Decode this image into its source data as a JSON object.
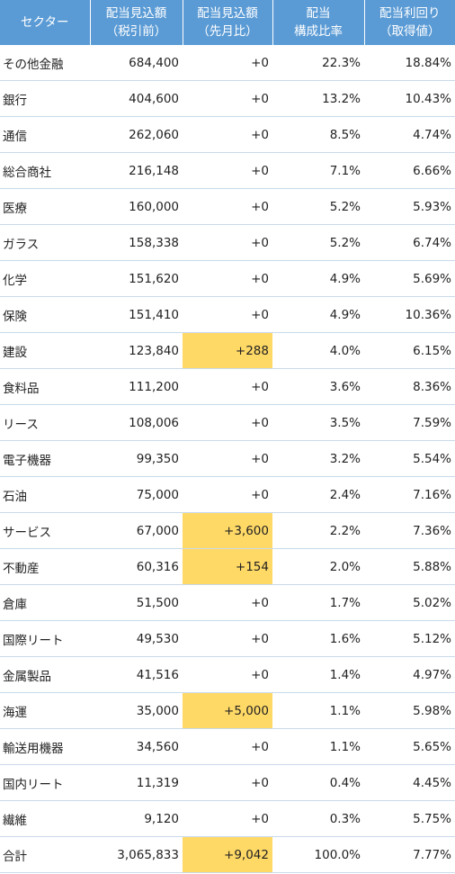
{
  "table": {
    "header": [
      [
        "セクター"
      ],
      [
        "配当見込額",
        "（税引前）"
      ],
      [
        "配当見込額",
        "（先月比）"
      ],
      [
        "配当",
        "構成比率"
      ],
      [
        "配当利回り",
        "（取得値）"
      ]
    ],
    "rows": [
      [
        "その他金融",
        "684,400",
        "+0",
        "22.3%",
        "18.84%"
      ],
      [
        "銀行",
        "404,600",
        "+0",
        "13.2%",
        "10.43%"
      ],
      [
        "通信",
        "262,060",
        "+0",
        "8.5%",
        "4.74%"
      ],
      [
        "総合商社",
        "216,148",
        "+0",
        "7.1%",
        "6.66%"
      ],
      [
        "医療",
        "160,000",
        "+0",
        "5.2%",
        "5.93%"
      ],
      [
        "ガラス",
        "158,338",
        "+0",
        "5.2%",
        "6.74%"
      ],
      [
        "化学",
        "151,620",
        "+0",
        "4.9%",
        "5.69%"
      ],
      [
        "保険",
        "151,410",
        "+0",
        "4.9%",
        "10.36%"
      ],
      [
        "建設",
        "123,840",
        "+288",
        "4.0%",
        "6.15%"
      ],
      [
        "食料品",
        "111,200",
        "+0",
        "3.6%",
        "8.36%"
      ],
      [
        "リース",
        "108,006",
        "+0",
        "3.5%",
        "7.59%"
      ],
      [
        "電子機器",
        "99,350",
        "+0",
        "3.2%",
        "5.54%"
      ],
      [
        "石油",
        "75,000",
        "+0",
        "2.4%",
        "7.16%"
      ],
      [
        "サービス",
        "67,000",
        "+3,600",
        "2.2%",
        "7.36%"
      ],
      [
        "不動産",
        "60,316",
        "+154",
        "2.0%",
        "5.88%"
      ],
      [
        "倉庫",
        "51,500",
        "+0",
        "1.7%",
        "5.02%"
      ],
      [
        "国際リート",
        "49,530",
        "+0",
        "1.6%",
        "5.12%"
      ],
      [
        "金属製品",
        "41,516",
        "+0",
        "1.4%",
        "4.97%"
      ],
      [
        "海運",
        "35,000",
        "+5,000",
        "1.1%",
        "5.98%"
      ],
      [
        "輸送用機器",
        "34,560",
        "+0",
        "1.1%",
        "5.65%"
      ],
      [
        "国内リート",
        "11,319",
        "+0",
        "0.4%",
        "4.45%"
      ],
      [
        "繊維",
        "9,120",
        "+0",
        "0.3%",
        "5.75%"
      ],
      [
        "合計",
        "3,065,833",
        "+9,042",
        "100.0%",
        "7.77%"
      ]
    ],
    "highlighted_cells": [
      [
        8,
        2
      ],
      [
        13,
        2
      ],
      [
        14,
        2
      ],
      [
        18,
        2
      ],
      [
        22,
        2
      ]
    ],
    "highlight_color": "#ffd966"
  }
}
